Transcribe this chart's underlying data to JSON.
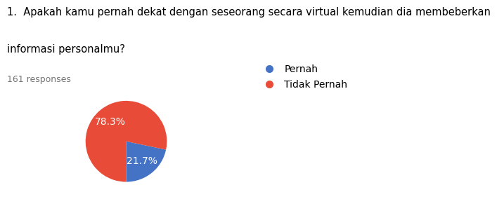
{
  "title_line1": "1.  Apakah kamu pernah dekat dengan seseorang secara virtual kemudian dia membeberkan",
  "title_line2": "informasi personalmu?",
  "responses_text": "161 responses",
  "labels": [
    "Pernah",
    "Tidak Pernah"
  ],
  "values": [
    21.7,
    78.3
  ],
  "colors": [
    "#4472C4",
    "#E84B37"
  ],
  "background_color": "#ffffff",
  "title_fontsize": 10.5,
  "responses_fontsize": 9,
  "legend_fontsize": 10,
  "autopct_fontsize": 10,
  "startangle": 270
}
